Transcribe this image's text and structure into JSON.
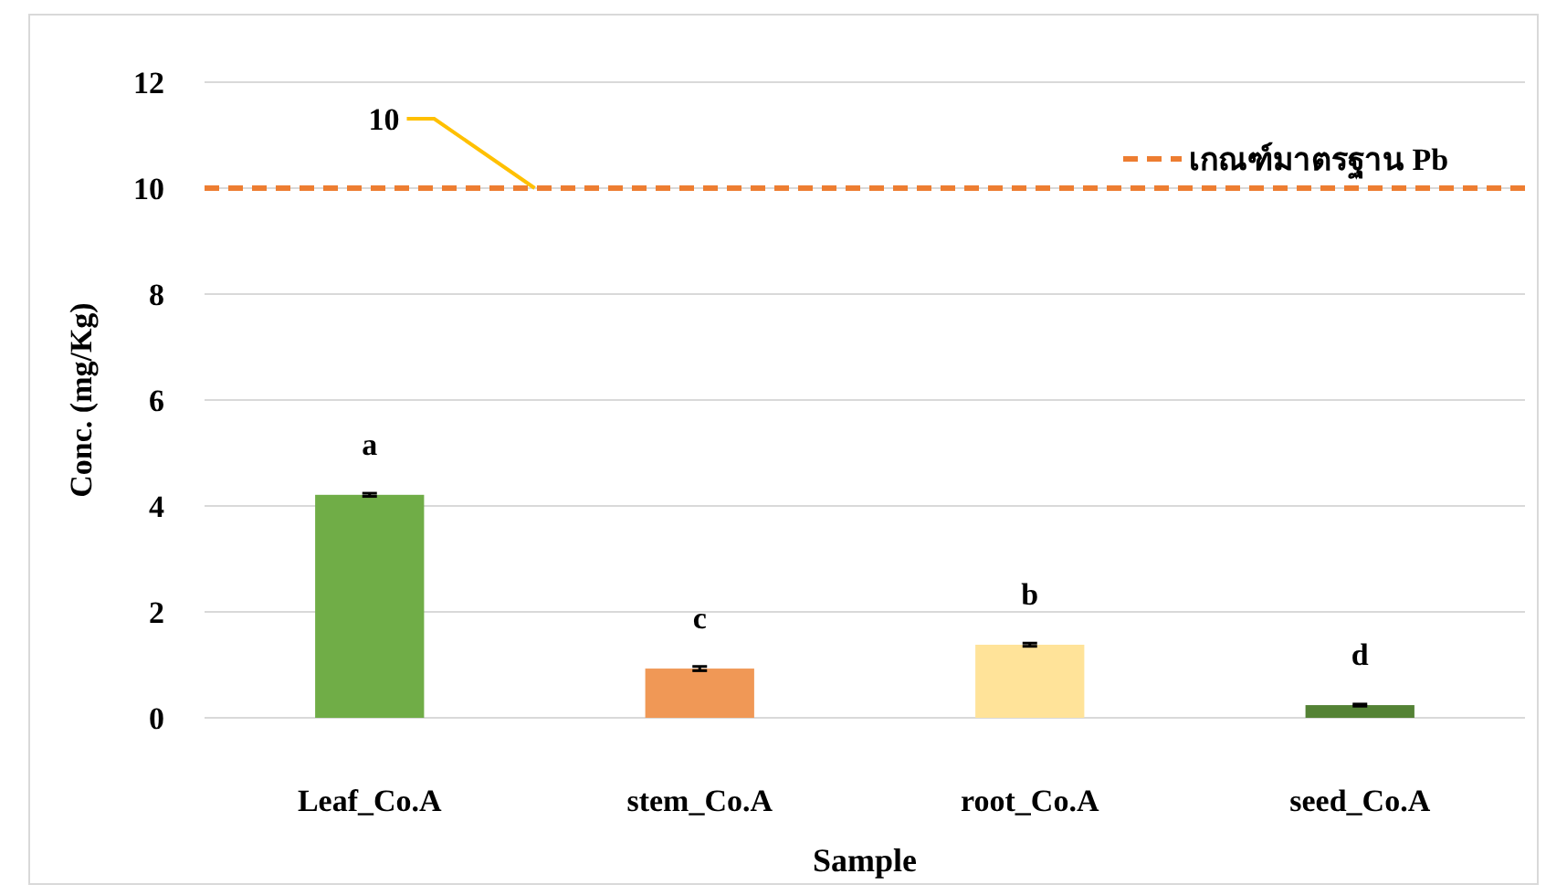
{
  "chart_data": {
    "type": "bar",
    "xlabel": "Sample",
    "ylabel": "Conc. (mg/Kg)",
    "categories": [
      "Leaf_Co.A",
      "stem_Co.A",
      "root_Co.A",
      "seed_Co.A"
    ],
    "values": [
      4.21,
      0.93,
      1.38,
      0.24
    ],
    "colors": [
      "#70ad47",
      "#f09856",
      "#ffe399",
      "#548235"
    ],
    "errors": [
      0.03,
      0.04,
      0.03,
      0.02
    ],
    "ylim": [
      0,
      12
    ],
    "yticks": [
      0,
      2,
      4,
      6,
      8,
      10,
      12
    ],
    "grid": "y",
    "ref_lines": [
      {
        "axis": "y",
        "value": 10,
        "label": "เกณฑ์มาตรฐาน Pb",
        "color": "#ed7d31",
        "line_style": "dashed"
      }
    ],
    "legend": "top right",
    "value_labels": [
      "a",
      "c",
      "b",
      "d"
    ],
    "annotations": [
      {
        "text": "10",
        "y": 10
      }
    ]
  }
}
